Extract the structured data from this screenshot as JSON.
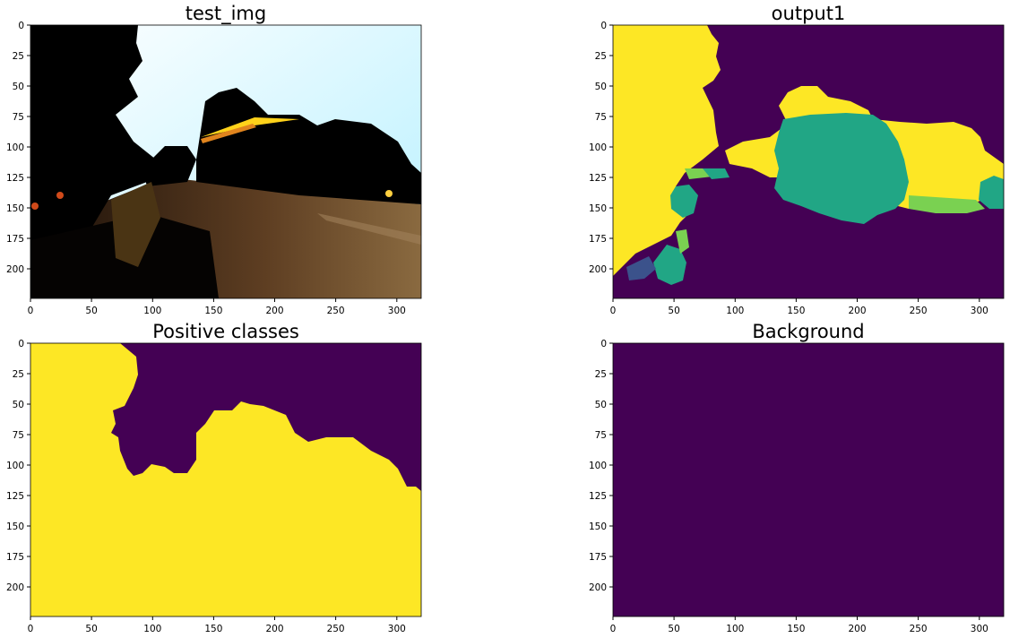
{
  "colors": {
    "viridis_dark": "#440154",
    "viridis_yellow": "#fde725",
    "viridis_teal": "#21a685",
    "viridis_green": "#7ad151",
    "viridis_blue": "#3b528b",
    "sky": "#c8f4ff",
    "road": "#6b4a2a"
  },
  "panels": [
    {
      "id": "test-img",
      "title": "test_img",
      "image": "road-scene-photo",
      "xticks": [
        0,
        50,
        100,
        150,
        200,
        250,
        300
      ],
      "yticks": [
        0,
        25,
        50,
        75,
        100,
        125,
        150,
        175,
        200
      ],
      "extent": {
        "width": 320,
        "height": 224
      }
    },
    {
      "id": "output1",
      "title": "output1",
      "image": "multiclass-segmentation-mask",
      "xticks": [
        0,
        50,
        100,
        150,
        200,
        250,
        300
      ],
      "yticks": [
        0,
        25,
        50,
        75,
        100,
        125,
        150,
        175,
        200
      ],
      "extent": {
        "width": 320,
        "height": 224
      }
    },
    {
      "id": "positive-classes",
      "title": "Positive classes",
      "image": "binary-mask-positive",
      "xticks": [
        0,
        50,
        100,
        150,
        200,
        250,
        300
      ],
      "yticks": [
        0,
        25,
        50,
        75,
        100,
        125,
        150,
        175,
        200
      ],
      "extent": {
        "width": 320,
        "height": 224
      }
    },
    {
      "id": "background",
      "title": "Background",
      "image": "binary-mask-background",
      "xticks": [
        0,
        50,
        100,
        150,
        200,
        250,
        300
      ],
      "yticks": [
        0,
        25,
        50,
        75,
        100,
        125,
        150,
        175,
        200
      ],
      "extent": {
        "width": 320,
        "height": 224
      }
    }
  ]
}
